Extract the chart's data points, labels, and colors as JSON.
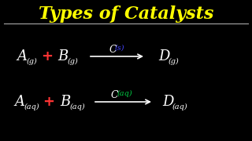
{
  "title": "Types of Catalysts",
  "title_color": "#FFFF00",
  "bg_color": "#000000",
  "line_color": "#AAAAAA",
  "white": "#FFFFFF",
  "red": "#FF3333",
  "blue": "#4444FF",
  "green": "#00CC44",
  "row1": {
    "A": "A",
    "A_sub": "(g)",
    "plus": "+",
    "B": "B",
    "B_sub": "(g)",
    "catalyst": "C",
    "cat_sub": "(s)",
    "D": "D",
    "D_sub": "(g)"
  },
  "row2": {
    "A": "A",
    "A_sub": "(aq)",
    "plus": "+",
    "B": "B",
    "B_sub": "(aq)",
    "catalyst": "C",
    "cat_sub": "(aq)",
    "D": "D",
    "D_sub": "(aq)"
  },
  "figsize": [
    3.2,
    1.8
  ],
  "dpi": 100
}
